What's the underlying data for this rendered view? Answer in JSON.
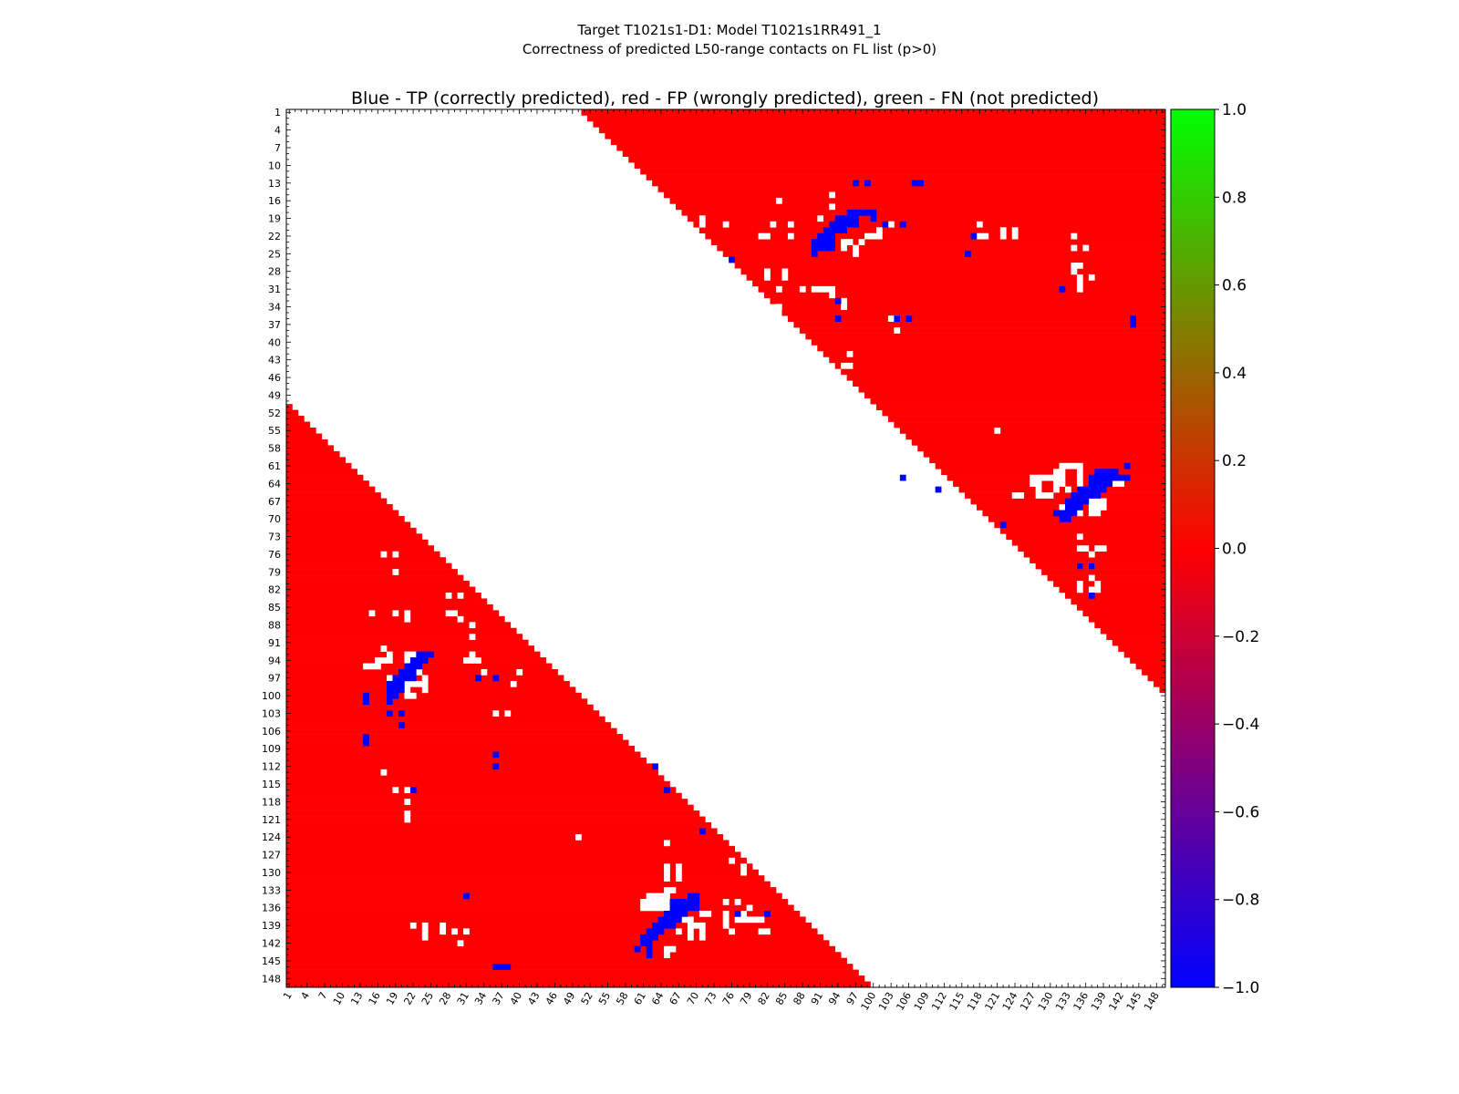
{
  "chart_data": {
    "type": "heatmap",
    "title": "Target T1021s1-D1: Model T1021s1RR491_1",
    "subtitle": "Correctness of predicted L50-range contacts on FL list (p>0)",
    "plot_title": "Blue - TP (correctly predicted), red - FP (wrongly predicted), green - FN (not predicted)",
    "xlabel": "",
    "ylabel": "",
    "n_residues": 149,
    "tick_labels": [
      "1",
      "4",
      "7",
      "10",
      "13",
      "16",
      "19",
      "22",
      "25",
      "28",
      "31",
      "34",
      "37",
      "40",
      "43",
      "46",
      "49",
      "52",
      "55",
      "58",
      "61",
      "64",
      "67",
      "70",
      "73",
      "76",
      "79",
      "82",
      "85",
      "88",
      "91",
      "94",
      "97",
      "100",
      "103",
      "106",
      "109",
      "112",
      "115",
      "118",
      "121",
      "124",
      "127",
      "130",
      "133",
      "136",
      "139",
      "142",
      "145",
      "148"
    ],
    "colorbar": {
      "range": [
        -1.0,
        1.0
      ],
      "ticks": [
        "1.0",
        "0.8",
        "0.6",
        "0.4",
        "0.2",
        "0.0",
        "−0.2",
        "−0.4",
        "−0.6",
        "−0.8",
        "−1.0"
      ],
      "colors": {
        "low": "#0000ff",
        "mid": "#ff0000",
        "high": "#00ff00"
      }
    },
    "colors": {
      "fp": "#ff0000",
      "tp": "#0000ff",
      "fn": "#00ff00",
      "empty": "#ffffff"
    },
    "upper_region_min_separation": 50,
    "lower_region_min_separation": 50,
    "upper_tp_cells": [
      [
        13,
        97
      ],
      [
        13,
        99
      ],
      [
        13,
        107
      ],
      [
        13,
        108
      ],
      [
        18,
        96
      ],
      [
        18,
        97
      ],
      [
        18,
        98
      ],
      [
        18,
        99
      ],
      [
        18,
        100
      ],
      [
        19,
        94
      ],
      [
        19,
        95
      ],
      [
        19,
        96
      ],
      [
        19,
        97
      ],
      [
        19,
        100
      ],
      [
        20,
        93
      ],
      [
        20,
        94
      ],
      [
        20,
        95
      ],
      [
        20,
        96
      ],
      [
        20,
        97
      ],
      [
        20,
        102
      ],
      [
        20,
        105
      ],
      [
        21,
        92
      ],
      [
        21,
        93
      ],
      [
        21,
        94
      ],
      [
        21,
        95
      ],
      [
        22,
        91
      ],
      [
        22,
        92
      ],
      [
        22,
        93
      ],
      [
        22,
        117
      ],
      [
        23,
        90
      ],
      [
        23,
        91
      ],
      [
        23,
        92
      ],
      [
        23,
        93
      ],
      [
        24,
        90
      ],
      [
        24,
        91
      ],
      [
        24,
        92
      ],
      [
        24,
        93
      ],
      [
        25,
        90
      ],
      [
        25,
        116
      ],
      [
        26,
        76
      ],
      [
        31,
        132
      ],
      [
        33,
        94
      ],
      [
        36,
        94
      ],
      [
        36,
        104
      ],
      [
        36,
        106
      ],
      [
        36,
        144
      ],
      [
        37,
        144
      ],
      [
        61,
        143
      ],
      [
        62,
        138
      ],
      [
        62,
        139
      ],
      [
        62,
        140
      ],
      [
        62,
        141
      ],
      [
        63,
        105
      ],
      [
        63,
        137
      ],
      [
        63,
        138
      ],
      [
        63,
        139
      ],
      [
        63,
        140
      ],
      [
        63,
        141
      ],
      [
        63,
        142
      ],
      [
        63,
        143
      ],
      [
        64,
        137
      ],
      [
        64,
        138
      ],
      [
        64,
        139
      ],
      [
        64,
        140
      ],
      [
        65,
        111
      ],
      [
        65,
        135
      ],
      [
        65,
        136
      ],
      [
        65,
        137
      ],
      [
        65,
        138
      ],
      [
        65,
        139
      ],
      [
        66,
        134
      ],
      [
        66,
        135
      ],
      [
        66,
        136
      ],
      [
        66,
        137
      ],
      [
        66,
        138
      ],
      [
        67,
        133
      ],
      [
        67,
        134
      ],
      [
        67,
        135
      ],
      [
        67,
        136
      ],
      [
        68,
        133
      ],
      [
        68,
        134
      ],
      [
        68,
        135
      ],
      [
        69,
        131
      ],
      [
        69,
        132
      ],
      [
        69,
        133
      ],
      [
        69,
        134
      ],
      [
        70,
        132
      ],
      [
        70,
        133
      ],
      [
        71,
        122
      ],
      [
        78,
        135
      ],
      [
        78,
        137
      ],
      [
        83,
        137
      ]
    ],
    "upper_white_cells": [
      [
        15,
        93
      ],
      [
        16,
        84
      ],
      [
        17,
        93
      ],
      [
        19,
        71
      ],
      [
        19,
        91
      ],
      [
        20,
        71
      ],
      [
        20,
        75
      ],
      [
        20,
        83
      ],
      [
        20,
        86
      ],
      [
        20,
        96
      ],
      [
        20,
        103
      ],
      [
        20,
        103
      ],
      [
        20,
        118
      ],
      [
        21,
        101
      ],
      [
        21,
        122
      ],
      [
        21,
        124
      ],
      [
        22,
        81
      ],
      [
        22,
        82
      ],
      [
        22,
        86
      ],
      [
        22,
        99
      ],
      [
        22,
        100
      ],
      [
        22,
        101
      ],
      [
        22,
        118
      ],
      [
        22,
        119
      ],
      [
        22,
        122
      ],
      [
        22,
        124
      ],
      [
        22,
        134
      ],
      [
        23,
        95
      ],
      [
        23,
        96
      ],
      [
        23,
        98
      ],
      [
        24,
        95
      ],
      [
        24,
        97
      ],
      [
        24,
        134
      ],
      [
        24,
        136
      ],
      [
        25,
        97
      ],
      [
        27,
        134
      ],
      [
        27,
        135
      ],
      [
        28,
        77
      ],
      [
        28,
        82
      ],
      [
        28,
        85
      ],
      [
        28,
        134
      ],
      [
        29,
        82
      ],
      [
        29,
        85
      ],
      [
        29,
        135
      ],
      [
        29,
        137
      ],
      [
        30,
        135
      ],
      [
        31,
        84
      ],
      [
        31,
        88
      ],
      [
        31,
        90
      ],
      [
        31,
        91
      ],
      [
        31,
        92
      ],
      [
        31,
        93
      ],
      [
        31,
        135
      ],
      [
        32,
        93
      ],
      [
        33,
        95
      ],
      [
        34,
        84
      ],
      [
        34,
        95
      ],
      [
        36,
        103
      ],
      [
        36,
        104
      ],
      [
        38,
        104
      ],
      [
        42,
        96
      ],
      [
        44,
        95
      ],
      [
        44,
        96
      ],
      [
        55,
        121
      ],
      [
        61,
        132
      ],
      [
        61,
        133
      ],
      [
        61,
        134
      ],
      [
        61,
        135
      ],
      [
        62,
        131
      ],
      [
        62,
        132
      ],
      [
        62,
        135
      ],
      [
        63,
        127
      ],
      [
        63,
        128
      ],
      [
        63,
        129
      ],
      [
        63,
        130
      ],
      [
        63,
        131
      ],
      [
        63,
        132
      ],
      [
        63,
        135
      ],
      [
        64,
        127
      ],
      [
        64,
        128
      ],
      [
        64,
        131
      ],
      [
        64,
        132
      ],
      [
        64,
        135
      ],
      [
        64,
        141
      ],
      [
        64,
        142
      ],
      [
        65,
        128
      ],
      [
        65,
        131
      ],
      [
        65,
        133
      ],
      [
        66,
        124
      ],
      [
        66,
        125
      ],
      [
        66,
        128
      ],
      [
        66,
        129
      ],
      [
        66,
        130
      ],
      [
        67,
        137
      ],
      [
        67,
        138
      ],
      [
        67,
        139
      ],
      [
        68,
        132
      ],
      [
        68,
        137
      ],
      [
        68,
        138
      ],
      [
        68,
        139
      ],
      [
        69,
        135
      ],
      [
        69,
        137
      ],
      [
        69,
        138
      ],
      [
        73,
        135
      ],
      [
        75,
        135
      ],
      [
        75,
        136
      ],
      [
        75,
        138
      ],
      [
        75,
        139
      ],
      [
        76,
        137
      ],
      [
        77,
        120
      ],
      [
        77,
        121
      ],
      [
        78,
        123
      ],
      [
        78,
        135
      ],
      [
        78,
        137
      ],
      [
        80,
        137
      ],
      [
        81,
        135
      ],
      [
        81,
        138
      ],
      [
        82,
        135
      ],
      [
        82,
        137
      ],
      [
        82,
        138
      ]
    ],
    "lower_tp_cells": [
      [
        93,
        23
      ],
      [
        93,
        24
      ],
      [
        93,
        25
      ],
      [
        94,
        22
      ],
      [
        94,
        23
      ],
      [
        94,
        24
      ],
      [
        95,
        21
      ],
      [
        95,
        22
      ],
      [
        95,
        23
      ],
      [
        96,
        20
      ],
      [
        96,
        21
      ],
      [
        96,
        22
      ],
      [
        97,
        19
      ],
      [
        97,
        20
      ],
      [
        97,
        21
      ],
      [
        97,
        22
      ],
      [
        97,
        33
      ],
      [
        97,
        36
      ],
      [
        98,
        18
      ],
      [
        98,
        19
      ],
      [
        98,
        20
      ],
      [
        99,
        18
      ],
      [
        99,
        19
      ],
      [
        99,
        20
      ],
      [
        100,
        14
      ],
      [
        100,
        18
      ],
      [
        100,
        19
      ],
      [
        101,
        14
      ],
      [
        101,
        18
      ],
      [
        103,
        18
      ],
      [
        103,
        20
      ],
      [
        105,
        20
      ],
      [
        107,
        14
      ],
      [
        108,
        14
      ],
      [
        110,
        36
      ],
      [
        112,
        36
      ],
      [
        112,
        63
      ],
      [
        116,
        65
      ],
      [
        116,
        22
      ],
      [
        123,
        71
      ],
      [
        134,
        70
      ],
      [
        134,
        69
      ],
      [
        134,
        31
      ],
      [
        135,
        66
      ],
      [
        135,
        67
      ],
      [
        135,
        68
      ],
      [
        135,
        69
      ],
      [
        135,
        70
      ],
      [
        136,
        66
      ],
      [
        136,
        67
      ],
      [
        136,
        68
      ],
      [
        136,
        69
      ],
      [
        136,
        70
      ],
      [
        137,
        65
      ],
      [
        137,
        66
      ],
      [
        137,
        67
      ],
      [
        137,
        68
      ],
      [
        137,
        77
      ],
      [
        137,
        82
      ],
      [
        138,
        64
      ],
      [
        138,
        65
      ],
      [
        138,
        66
      ],
      [
        138,
        67
      ],
      [
        139,
        63
      ],
      [
        139,
        64
      ],
      [
        139,
        65
      ],
      [
        139,
        66
      ],
      [
        140,
        62
      ],
      [
        140,
        63
      ],
      [
        140,
        64
      ],
      [
        141,
        61
      ],
      [
        141,
        62
      ],
      [
        141,
        63
      ],
      [
        142,
        61
      ],
      [
        142,
        62
      ],
      [
        143,
        60
      ],
      [
        143,
        62
      ],
      [
        144,
        62
      ],
      [
        146,
        36
      ],
      [
        146,
        37
      ],
      [
        146,
        38
      ]
    ],
    "lower_white_cells": [
      [
        76,
        17
      ],
      [
        76,
        19
      ],
      [
        79,
        19
      ],
      [
        83,
        28
      ],
      [
        83,
        30
      ],
      [
        86,
        15
      ],
      [
        86,
        19
      ],
      [
        86,
        21
      ],
      [
        86,
        28
      ],
      [
        86,
        29
      ],
      [
        87,
        21
      ],
      [
        87,
        30
      ],
      [
        88,
        32
      ],
      [
        90,
        32
      ],
      [
        92,
        17
      ],
      [
        93,
        18
      ],
      [
        93,
        21
      ],
      [
        93,
        22
      ],
      [
        93,
        32
      ],
      [
        94,
        16
      ],
      [
        94,
        17
      ],
      [
        94,
        18
      ],
      [
        94,
        21
      ],
      [
        94,
        22
      ],
      [
        94,
        31
      ],
      [
        94,
        32
      ],
      [
        94,
        33
      ],
      [
        95,
        14
      ],
      [
        95,
        15
      ],
      [
        95,
        16
      ],
      [
        95,
        22
      ],
      [
        96,
        23
      ],
      [
        96,
        34
      ],
      [
        96,
        40
      ],
      [
        97,
        18
      ],
      [
        97,
        24
      ],
      [
        98,
        21
      ],
      [
        98,
        22
      ],
      [
        98,
        23
      ],
      [
        98,
        24
      ],
      [
        98,
        39
      ],
      [
        99,
        21
      ],
      [
        99,
        24
      ],
      [
        100,
        21
      ],
      [
        100,
        22
      ],
      [
        103,
        36
      ],
      [
        103,
        38
      ],
      [
        113,
        17
      ],
      [
        116,
        19
      ],
      [
        116,
        21
      ],
      [
        118,
        21
      ],
      [
        120,
        21
      ],
      [
        121,
        21
      ],
      [
        124,
        50
      ],
      [
        125,
        65
      ],
      [
        128,
        76
      ],
      [
        129,
        65
      ],
      [
        129,
        67
      ],
      [
        129,
        78
      ],
      [
        130,
        65
      ],
      [
        130,
        67
      ],
      [
        130,
        78
      ],
      [
        131,
        65
      ],
      [
        131,
        67
      ],
      [
        133,
        65
      ],
      [
        133,
        66
      ],
      [
        134,
        62
      ],
      [
        134,
        63
      ],
      [
        134,
        64
      ],
      [
        134,
        65
      ],
      [
        135,
        61
      ],
      [
        135,
        62
      ],
      [
        135,
        63
      ],
      [
        135,
        64
      ],
      [
        135,
        65
      ],
      [
        135,
        75
      ],
      [
        135,
        77
      ],
      [
        136,
        61
      ],
      [
        136,
        62
      ],
      [
        136,
        63
      ],
      [
        136,
        64
      ],
      [
        136,
        65
      ],
      [
        136,
        66
      ],
      [
        136,
        79
      ],
      [
        137,
        71
      ],
      [
        137,
        72
      ],
      [
        137,
        75
      ],
      [
        137,
        78
      ],
      [
        138,
        68
      ],
      [
        138,
        69
      ],
      [
        138,
        75
      ],
      [
        138,
        77
      ],
      [
        138,
        78
      ],
      [
        138,
        79
      ],
      [
        138,
        80
      ],
      [
        138,
        81
      ],
      [
        139,
        22
      ],
      [
        139,
        24
      ],
      [
        139,
        27
      ],
      [
        139,
        69
      ],
      [
        139,
        70
      ],
      [
        139,
        71
      ],
      [
        139,
        75
      ],
      [
        140,
        24
      ],
      [
        140,
        27
      ],
      [
        140,
        29
      ],
      [
        140,
        31
      ],
      [
        140,
        67
      ],
      [
        140,
        69
      ],
      [
        140,
        71
      ],
      [
        140,
        76
      ],
      [
        140,
        81
      ],
      [
        140,
        82
      ],
      [
        141,
        24
      ],
      [
        141,
        69
      ],
      [
        141,
        71
      ],
      [
        142,
        30
      ],
      [
        143,
        65
      ],
      [
        143,
        66
      ],
      [
        144,
        65
      ]
    ]
  }
}
